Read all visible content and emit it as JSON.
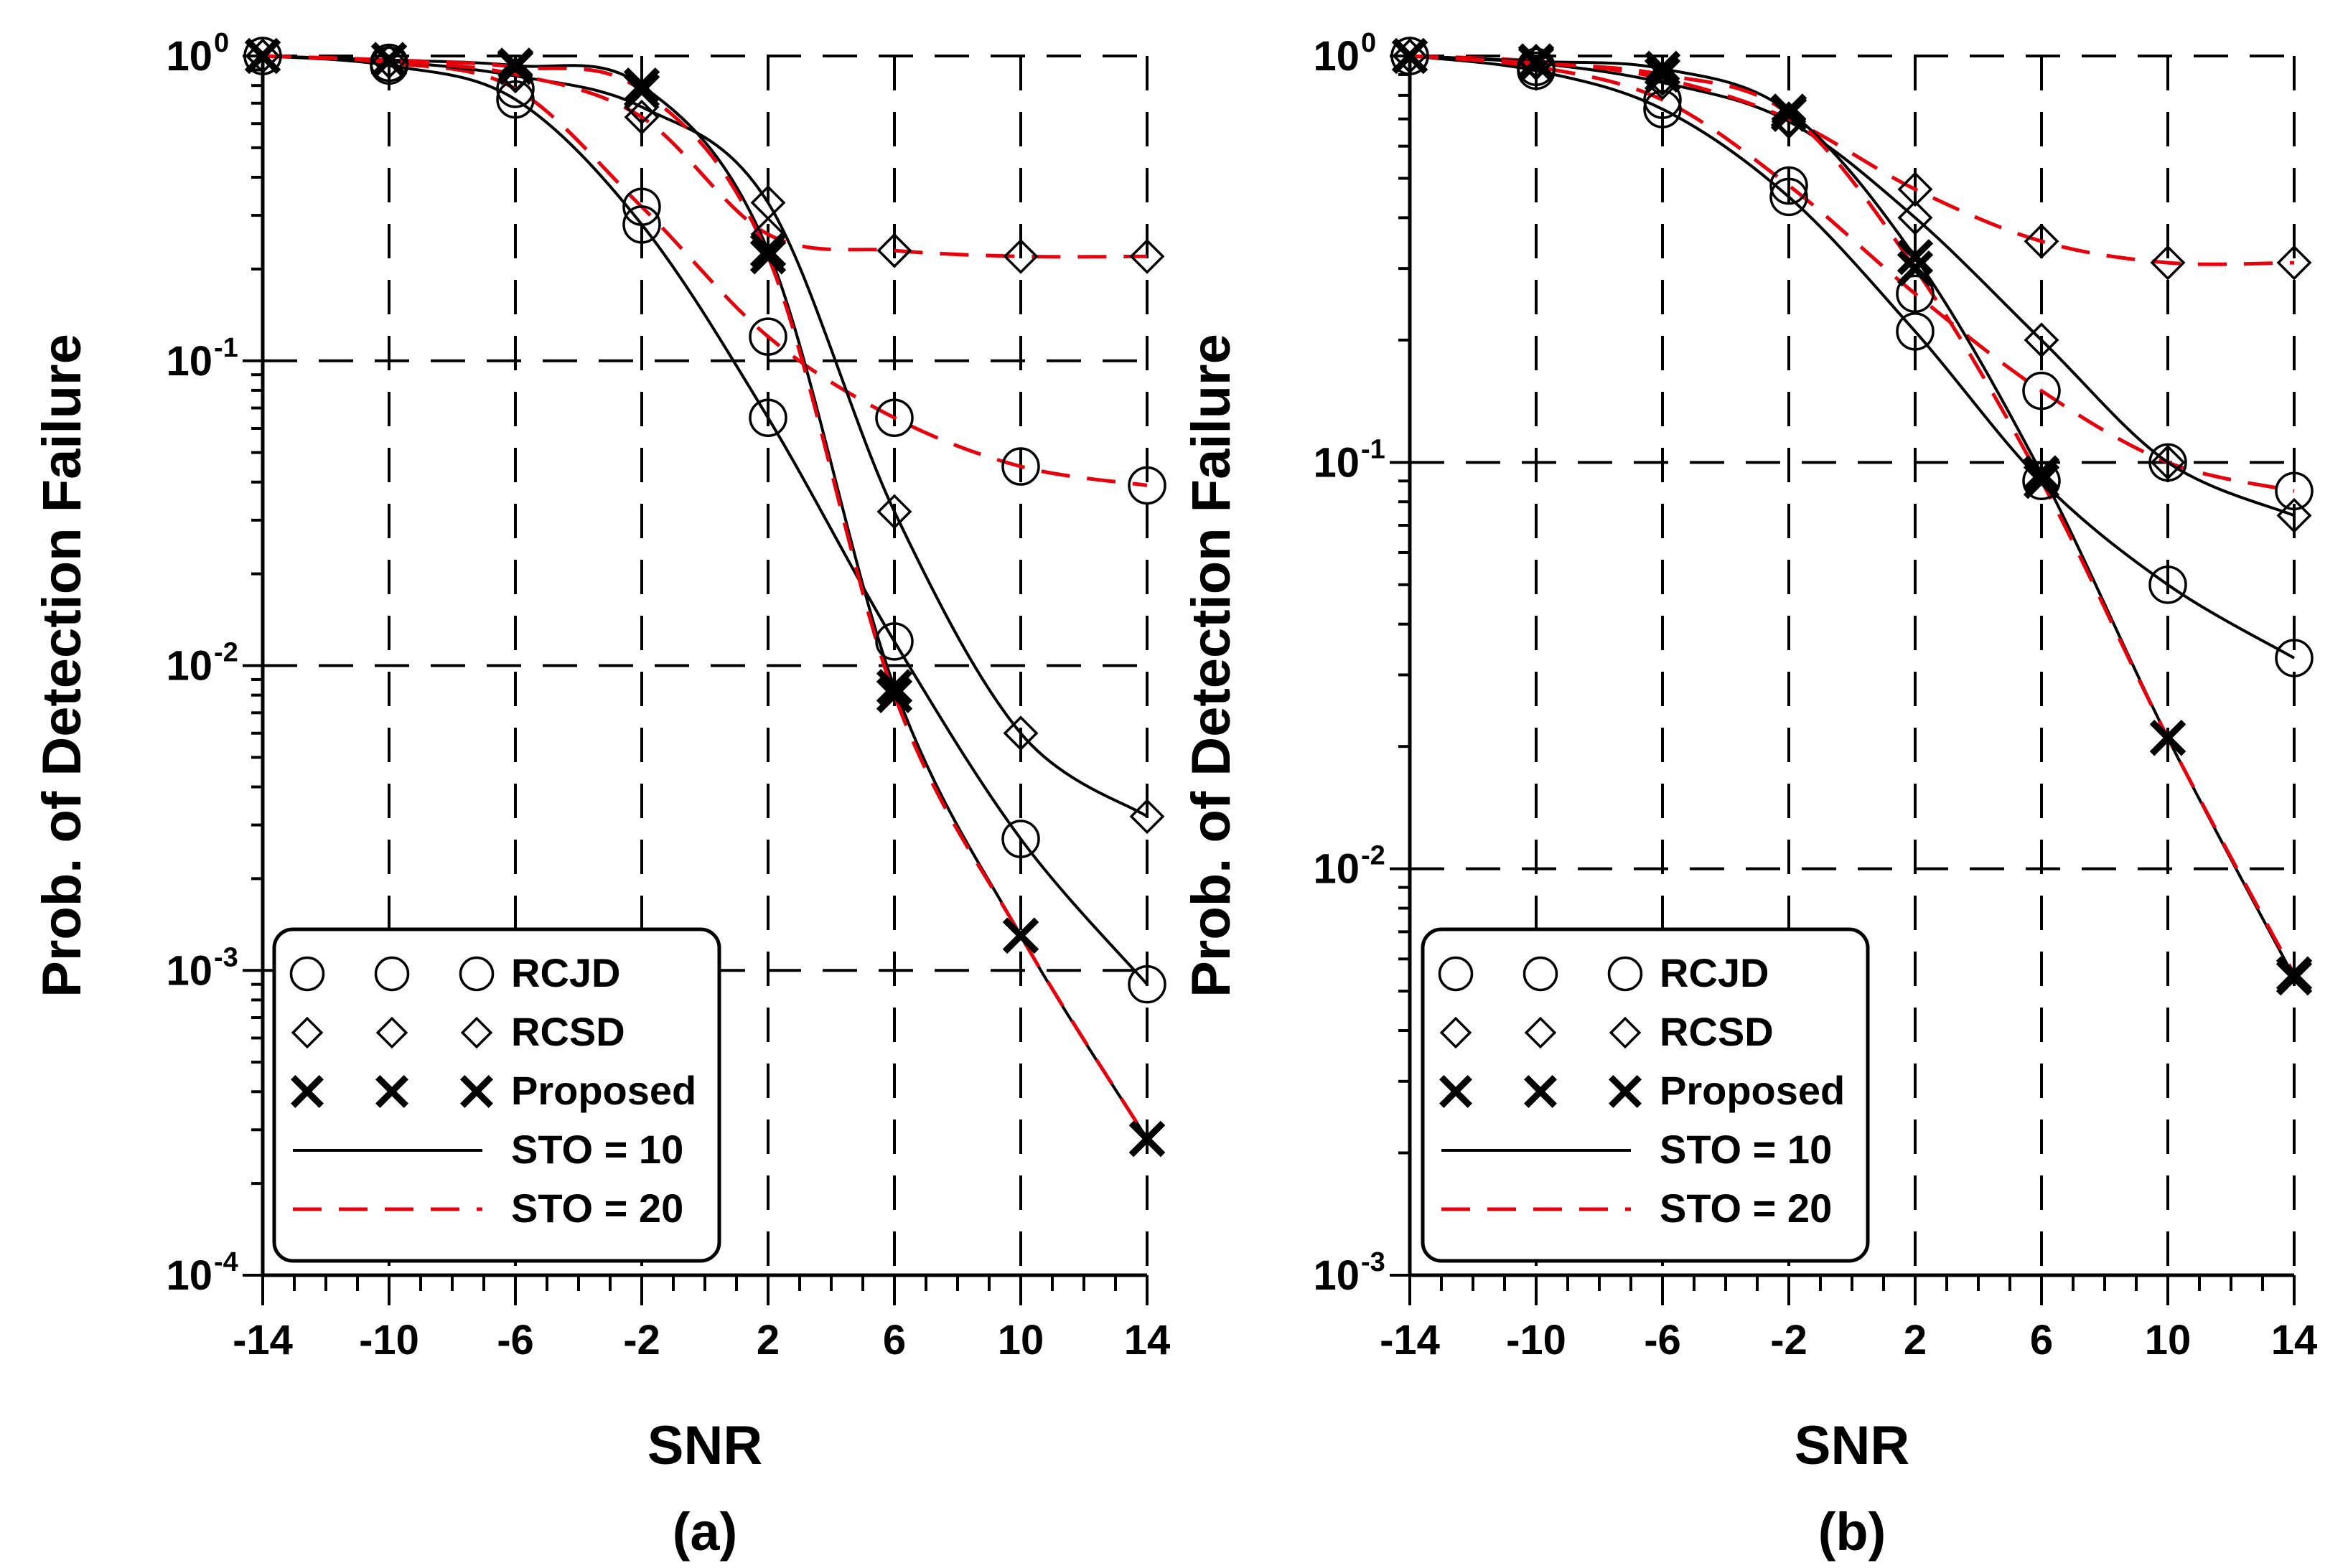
{
  "chart_data": [
    {
      "type": "line",
      "panel_label": "(a)",
      "xlabel": "SNR",
      "ylabel": "Prob. of Detection Failure",
      "yscale": "log",
      "xlim": [
        -14,
        14
      ],
      "ylim": [
        0.0001,
        1
      ],
      "x_ticks": [
        "-14",
        "-10",
        "-6",
        "-2",
        "2",
        "6",
        "10",
        "14"
      ],
      "y_ticks": [
        {
          "base": "10",
          "exp": "0"
        },
        {
          "base": "10",
          "exp": "-1"
        },
        {
          "base": "10",
          "exp": "-2"
        },
        {
          "base": "10",
          "exp": "-3"
        },
        {
          "base": "10",
          "exp": "-4"
        }
      ],
      "grid": true,
      "legend": {
        "placement": "bottom-left",
        "entries": [
          "RCJD",
          "RCSD",
          "Proposed",
          "STO = 10",
          "STO = 20"
        ]
      },
      "x": [
        -14,
        -10,
        -6,
        -2,
        2,
        6,
        10,
        14
      ],
      "series": [
        {
          "name": "RCJD, STO = 10",
          "method": "RCJD",
          "sto": 10,
          "marker": "circle",
          "line": "solid",
          "color": "#000000",
          "values": [
            1.0,
            0.93,
            0.72,
            0.28,
            0.065,
            0.012,
            0.0027,
            0.0009
          ]
        },
        {
          "name": "RCJD, STO = 20",
          "method": "RCJD",
          "sto": 20,
          "marker": "circle",
          "line": "dashed",
          "color": "#e8000b",
          "values": [
            1.0,
            0.95,
            0.78,
            0.32,
            0.12,
            0.065,
            0.045,
            0.039
          ]
        },
        {
          "name": "RCSD, STO = 10",
          "method": "RCSD",
          "sto": 10,
          "marker": "diamond",
          "line": "solid",
          "color": "#000000",
          "values": [
            1.0,
            0.96,
            0.86,
            0.68,
            0.33,
            0.032,
            0.006,
            0.0032
          ]
        },
        {
          "name": "RCSD, STO = 20",
          "method": "RCSD",
          "sto": 20,
          "marker": "diamond",
          "line": "dashed",
          "color": "#e8000b",
          "values": [
            1.0,
            0.96,
            0.87,
            0.63,
            0.26,
            0.23,
            0.22,
            0.22
          ]
        },
        {
          "name": "Proposed, STO = 10",
          "method": "Proposed",
          "sto": 10,
          "marker": "x",
          "line": "solid",
          "color": "#000000",
          "values": [
            1.0,
            0.97,
            0.93,
            0.8,
            0.23,
            0.0085,
            0.0013,
            0.00028
          ]
        },
        {
          "name": "Proposed, STO = 20",
          "method": "Proposed",
          "sto": 20,
          "marker": "x",
          "line": "dashed",
          "color": "#e8000b",
          "values": [
            1.0,
            0.97,
            0.92,
            0.77,
            0.22,
            0.008,
            0.0013,
            0.00028
          ]
        }
      ]
    },
    {
      "type": "line",
      "panel_label": "(b)",
      "xlabel": "SNR",
      "ylabel": "Prob. of Detection Failure",
      "yscale": "log",
      "xlim": [
        -14,
        14
      ],
      "ylim": [
        0.001,
        1
      ],
      "x_ticks": [
        "-14",
        "-10",
        "-6",
        "-2",
        "2",
        "6",
        "10",
        "14"
      ],
      "y_ticks": [
        {
          "base": "10",
          "exp": "0"
        },
        {
          "base": "10",
          "exp": "-1"
        },
        {
          "base": "10",
          "exp": "-2"
        },
        {
          "base": "10",
          "exp": "-3"
        }
      ],
      "grid": true,
      "legend": {
        "placement": "bottom-left",
        "entries": [
          "RCJD",
          "RCSD",
          "Proposed",
          "STO = 10",
          "STO = 20"
        ]
      },
      "x": [
        -14,
        -10,
        -6,
        -2,
        2,
        6,
        10,
        14
      ],
      "series": [
        {
          "name": "RCJD, STO = 10",
          "method": "RCJD",
          "sto": 10,
          "marker": "circle",
          "line": "solid",
          "color": "#000000",
          "values": [
            1.0,
            0.92,
            0.74,
            0.45,
            0.21,
            0.09,
            0.05,
            0.033
          ]
        },
        {
          "name": "RCJD, STO = 20",
          "method": "RCJD",
          "sto": 20,
          "marker": "circle",
          "line": "dashed",
          "color": "#e8000b",
          "values": [
            1.0,
            0.94,
            0.78,
            0.48,
            0.26,
            0.15,
            0.1,
            0.085
          ]
        },
        {
          "name": "RCSD, STO = 10",
          "method": "RCSD",
          "sto": 10,
          "marker": "diamond",
          "line": "solid",
          "color": "#000000",
          "values": [
            1.0,
            0.96,
            0.86,
            0.69,
            0.4,
            0.2,
            0.1,
            0.074
          ]
        },
        {
          "name": "RCSD, STO = 20",
          "method": "RCSD",
          "sto": 20,
          "marker": "diamond",
          "line": "dashed",
          "color": "#e8000b",
          "values": [
            1.0,
            0.97,
            0.88,
            0.7,
            0.47,
            0.35,
            0.31,
            0.31
          ]
        },
        {
          "name": "Proposed, STO = 10",
          "method": "Proposed",
          "sto": 10,
          "marker": "x",
          "line": "solid",
          "color": "#000000",
          "values": [
            1.0,
            0.97,
            0.93,
            0.73,
            0.32,
            0.094,
            0.021,
            0.0054
          ]
        },
        {
          "name": "Proposed, STO = 20",
          "method": "Proposed",
          "sto": 20,
          "marker": "x",
          "line": "dashed",
          "color": "#e8000b",
          "values": [
            1.0,
            0.96,
            0.9,
            0.72,
            0.3,
            0.09,
            0.021,
            0.0055
          ]
        }
      ]
    }
  ]
}
